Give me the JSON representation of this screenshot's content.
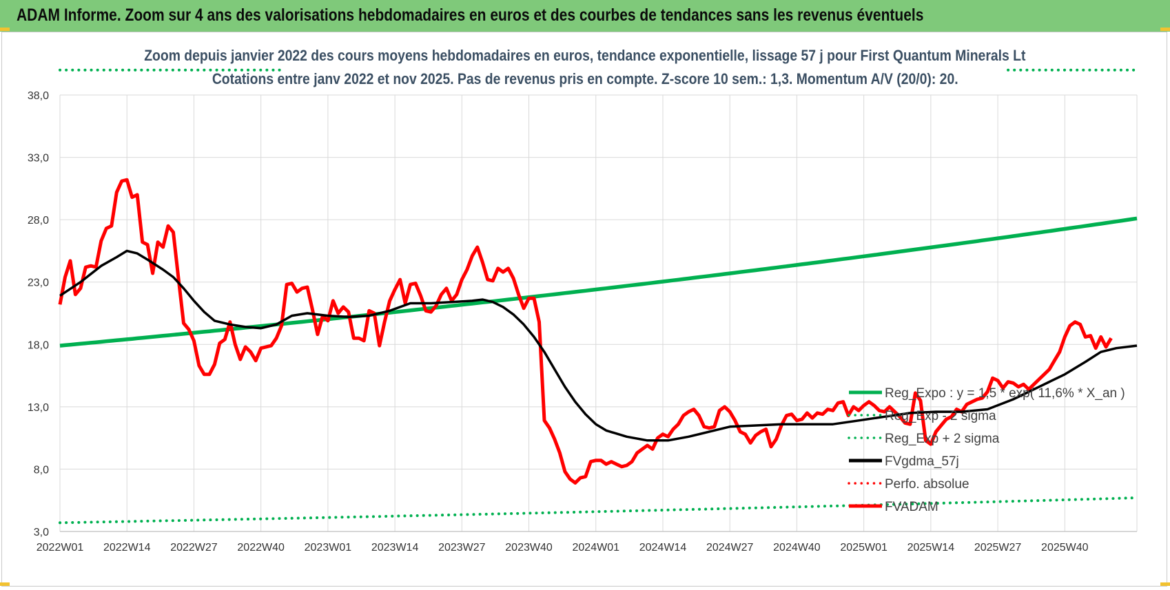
{
  "banner": {
    "title": "ADAM Informe. Zoom sur 4 ans des valorisations hebdomadaires en euros et des courbes de tendances sans les revenus éventuels"
  },
  "chart_data": {
    "type": "line",
    "title": "Zoom depuis janvier 2022 des cours moyens hebdomadaires en euros, tendance exponentielle, lissage 57 j pour First Quantum Minerals Lt",
    "subtitle": "Cotations entre janv 2022 et nov 2025. Pas de revenus pris en compte. Z-score 10 sem.: 1,3. Momentum A/V (20/0): 20.",
    "xlabel": "",
    "ylabel": "",
    "ylim": [
      3,
      38
    ],
    "y_ticks": [
      "3,0",
      "8,0",
      "13,0",
      "18,0",
      "23,0",
      "28,0",
      "33,0",
      "38,0"
    ],
    "x_ticks": [
      "2022W01",
      "2022W14",
      "2022W27",
      "2022W40",
      "2023W01",
      "2023W14",
      "2023W27",
      "2023W40",
      "2024W01",
      "2024W14",
      "2024W27",
      "2024W40",
      "2025W01",
      "2025W14",
      "2025W27",
      "2025W40"
    ],
    "grid": true,
    "legend_placement": "bottom-right",
    "colors": {
      "reg_expo": "#00b050",
      "sigma": "#00b050",
      "fvgdma": "#000000",
      "perfo": "#ff0000",
      "fvadam": "#ff0000"
    },
    "series": [
      {
        "name": "Reg_Expo : y = 1,5 * exp( 11,6% * X_an )",
        "style": "solid-thick",
        "points": [
          [
            0,
            17.9
          ],
          [
            209,
            28.1
          ]
        ]
      },
      {
        "name": "Reg_Exp - 2 sigma",
        "style": "dotted",
        "points": [
          [
            0,
            3.7
          ],
          [
            209,
            5.7
          ]
        ]
      },
      {
        "name": "Reg_Exp + 2 sigma",
        "style": "dotted",
        "points": [
          [
            0,
            40.0
          ],
          [
            209,
            40.0
          ]
        ]
      },
      {
        "name": "FVgdma_57j",
        "style": "solid",
        "points": [
          [
            0,
            21.9
          ],
          [
            4,
            23.0
          ],
          [
            8,
            24.3
          ],
          [
            11,
            25.0
          ],
          [
            13,
            25.5
          ],
          [
            15,
            25.3
          ],
          [
            17,
            24.8
          ],
          [
            20,
            24.0
          ],
          [
            22,
            23.4
          ],
          [
            24,
            22.5
          ],
          [
            26,
            21.5
          ],
          [
            28,
            20.6
          ],
          [
            30,
            19.9
          ],
          [
            33,
            19.6
          ],
          [
            36,
            19.4
          ],
          [
            39,
            19.3
          ],
          [
            42,
            19.6
          ],
          [
            45,
            20.3
          ],
          [
            48,
            20.5
          ],
          [
            52,
            20.3
          ],
          [
            56,
            20.2
          ],
          [
            60,
            20.3
          ],
          [
            64,
            20.7
          ],
          [
            68,
            21.3
          ],
          [
            72,
            21.3
          ],
          [
            76,
            21.4
          ],
          [
            80,
            21.5
          ],
          [
            82,
            21.6
          ],
          [
            84,
            21.4
          ],
          [
            86,
            21.0
          ],
          [
            88,
            20.4
          ],
          [
            90,
            19.6
          ],
          [
            92,
            18.6
          ],
          [
            94,
            17.4
          ],
          [
            96,
            16.0
          ],
          [
            98,
            14.6
          ],
          [
            100,
            13.4
          ],
          [
            102,
            12.4
          ],
          [
            104,
            11.6
          ],
          [
            106,
            11.1
          ],
          [
            110,
            10.6
          ],
          [
            114,
            10.3
          ],
          [
            118,
            10.3
          ],
          [
            122,
            10.6
          ],
          [
            126,
            11.0
          ],
          [
            130,
            11.4
          ],
          [
            135,
            11.5
          ],
          [
            140,
            11.6
          ],
          [
            145,
            11.6
          ],
          [
            150,
            11.6
          ],
          [
            155,
            11.9
          ],
          [
            160,
            12.2
          ],
          [
            165,
            12.5
          ],
          [
            170,
            12.6
          ],
          [
            175,
            12.6
          ],
          [
            180,
            12.8
          ],
          [
            185,
            13.6
          ],
          [
            190,
            14.6
          ],
          [
            195,
            15.6
          ],
          [
            199,
            16.6
          ],
          [
            202,
            17.4
          ],
          [
            205,
            17.7
          ],
          [
            209,
            17.9
          ]
        ]
      },
      {
        "name": "Perfo. absolue",
        "style": "dotted",
        "points": []
      },
      {
        "name": "FVADAM",
        "style": "solid-thick",
        "points": [
          [
            0,
            21.2
          ],
          [
            1,
            23.4
          ],
          [
            2,
            24.7
          ],
          [
            3,
            22.0
          ],
          [
            4,
            22.5
          ],
          [
            5,
            24.2
          ],
          [
            6,
            24.3
          ],
          [
            7,
            24.2
          ],
          [
            8,
            26.3
          ],
          [
            9,
            27.3
          ],
          [
            10,
            27.5
          ],
          [
            11,
            30.2
          ],
          [
            12,
            31.1
          ],
          [
            13,
            31.2
          ],
          [
            14,
            29.8
          ],
          [
            15,
            30.0
          ],
          [
            16,
            26.2
          ],
          [
            17,
            26.0
          ],
          [
            18,
            23.7
          ],
          [
            19,
            26.2
          ],
          [
            20,
            25.8
          ],
          [
            21,
            27.5
          ],
          [
            22,
            27.0
          ],
          [
            23,
            23.3
          ],
          [
            24,
            19.7
          ],
          [
            25,
            19.2
          ],
          [
            26,
            18.3
          ],
          [
            27,
            16.3
          ],
          [
            28,
            15.6
          ],
          [
            29,
            15.6
          ],
          [
            30,
            16.4
          ],
          [
            31,
            18.1
          ],
          [
            32,
            18.4
          ],
          [
            33,
            19.8
          ],
          [
            34,
            18.0
          ],
          [
            35,
            16.8
          ],
          [
            36,
            17.8
          ],
          [
            37,
            17.4
          ],
          [
            38,
            16.7
          ],
          [
            39,
            17.7
          ],
          [
            40,
            17.8
          ],
          [
            41,
            17.9
          ],
          [
            42,
            18.5
          ],
          [
            43,
            19.5
          ],
          [
            44,
            22.8
          ],
          [
            45,
            22.9
          ],
          [
            46,
            22.2
          ],
          [
            47,
            22.5
          ],
          [
            48,
            22.6
          ],
          [
            49,
            20.8
          ],
          [
            50,
            18.8
          ],
          [
            51,
            20.3
          ],
          [
            52,
            19.9
          ],
          [
            53,
            21.5
          ],
          [
            54,
            20.5
          ],
          [
            55,
            21.0
          ],
          [
            56,
            20.6
          ],
          [
            57,
            18.5
          ],
          [
            58,
            18.5
          ],
          [
            59,
            18.3
          ],
          [
            60,
            20.7
          ],
          [
            61,
            20.5
          ],
          [
            62,
            17.9
          ],
          [
            63,
            19.8
          ],
          [
            64,
            21.5
          ],
          [
            65,
            22.4
          ],
          [
            66,
            23.2
          ],
          [
            67,
            21.3
          ],
          [
            68,
            22.8
          ],
          [
            69,
            22.9
          ],
          [
            70,
            21.9
          ],
          [
            71,
            20.7
          ],
          [
            72,
            20.6
          ],
          [
            73,
            21.1
          ],
          [
            74,
            22.0
          ],
          [
            75,
            22.5
          ],
          [
            76,
            21.5
          ],
          [
            77,
            22.0
          ],
          [
            78,
            23.2
          ],
          [
            79,
            24.0
          ],
          [
            80,
            25.1
          ],
          [
            81,
            25.8
          ],
          [
            82,
            24.6
          ],
          [
            83,
            23.2
          ],
          [
            84,
            23.1
          ],
          [
            85,
            24.1
          ],
          [
            86,
            23.8
          ],
          [
            87,
            24.1
          ],
          [
            88,
            23.3
          ],
          [
            89,
            22.0
          ],
          [
            90,
            20.9
          ],
          [
            91,
            21.7
          ],
          [
            92,
            21.7
          ],
          [
            93,
            19.8
          ],
          [
            94,
            11.9
          ],
          [
            95,
            11.3
          ],
          [
            96,
            10.4
          ],
          [
            97,
            9.3
          ],
          [
            98,
            7.8
          ],
          [
            99,
            7.2
          ],
          [
            100,
            6.9
          ],
          [
            101,
            7.3
          ],
          [
            102,
            7.4
          ],
          [
            103,
            8.6
          ],
          [
            104,
            8.7
          ],
          [
            105,
            8.7
          ],
          [
            106,
            8.4
          ],
          [
            107,
            8.6
          ],
          [
            108,
            8.4
          ],
          [
            109,
            8.2
          ],
          [
            110,
            8.3
          ],
          [
            111,
            8.6
          ],
          [
            112,
            9.3
          ],
          [
            113,
            9.6
          ],
          [
            114,
            9.9
          ],
          [
            115,
            9.6
          ],
          [
            116,
            10.5
          ],
          [
            117,
            10.8
          ],
          [
            118,
            10.6
          ],
          [
            119,
            11.2
          ],
          [
            120,
            11.6
          ],
          [
            121,
            12.3
          ],
          [
            122,
            12.6
          ],
          [
            123,
            12.8
          ],
          [
            124,
            12.3
          ],
          [
            125,
            11.4
          ],
          [
            126,
            11.3
          ],
          [
            127,
            11.4
          ],
          [
            128,
            12.7
          ],
          [
            129,
            13.0
          ],
          [
            130,
            12.6
          ],
          [
            131,
            11.9
          ],
          [
            132,
            11.0
          ],
          [
            133,
            10.8
          ],
          [
            134,
            10.1
          ],
          [
            135,
            10.7
          ],
          [
            136,
            11.0
          ],
          [
            137,
            11.2
          ],
          [
            138,
            9.8
          ],
          [
            139,
            10.4
          ],
          [
            140,
            11.5
          ],
          [
            141,
            12.3
          ],
          [
            142,
            12.4
          ],
          [
            143,
            11.9
          ],
          [
            144,
            12.0
          ],
          [
            145,
            12.5
          ],
          [
            146,
            12.1
          ],
          [
            147,
            12.5
          ],
          [
            148,
            12.4
          ],
          [
            149,
            12.8
          ],
          [
            150,
            12.7
          ],
          [
            151,
            13.3
          ],
          [
            152,
            13.4
          ],
          [
            153,
            12.3
          ],
          [
            154,
            13.0
          ],
          [
            155,
            12.7
          ],
          [
            156,
            13.1
          ],
          [
            157,
            13.4
          ],
          [
            158,
            13.1
          ],
          [
            159,
            12.7
          ],
          [
            160,
            12.6
          ],
          [
            161,
            13.0
          ],
          [
            162,
            12.6
          ],
          [
            163,
            12.2
          ],
          [
            164,
            11.7
          ],
          [
            165,
            11.6
          ],
          [
            166,
            14.1
          ],
          [
            167,
            13.5
          ],
          [
            168,
            10.3
          ],
          [
            169,
            10.0
          ],
          [
            170,
            11.0
          ],
          [
            171,
            11.5
          ],
          [
            172,
            12.0
          ],
          [
            173,
            12.2
          ],
          [
            174,
            12.8
          ],
          [
            175,
            12.6
          ],
          [
            176,
            13.2
          ],
          [
            177,
            13.4
          ],
          [
            178,
            13.6
          ],
          [
            179,
            13.7
          ],
          [
            180,
            14.2
          ],
          [
            181,
            15.3
          ],
          [
            182,
            15.1
          ],
          [
            183,
            14.5
          ],
          [
            184,
            15.0
          ],
          [
            185,
            14.9
          ],
          [
            186,
            14.6
          ],
          [
            187,
            14.8
          ],
          [
            188,
            14.4
          ],
          [
            189,
            14.8
          ],
          [
            190,
            15.2
          ],
          [
            191,
            15.6
          ],
          [
            192,
            16.0
          ],
          [
            193,
            16.7
          ],
          [
            194,
            17.4
          ],
          [
            195,
            18.6
          ],
          [
            196,
            19.5
          ],
          [
            197,
            19.8
          ],
          [
            198,
            19.6
          ],
          [
            199,
            18.6
          ],
          [
            200,
            18.7
          ],
          [
            201,
            17.7
          ],
          [
            202,
            18.6
          ],
          [
            203,
            17.8
          ],
          [
            204,
            18.5
          ]
        ]
      }
    ]
  }
}
